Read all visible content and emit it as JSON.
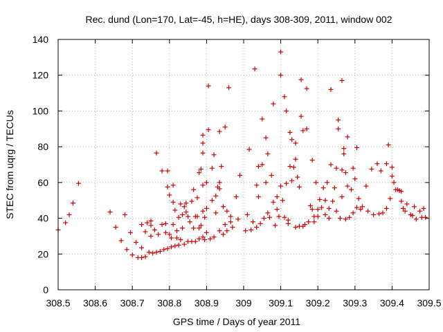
{
  "chart_data": {
    "type": "scatter",
    "title": "Rec. dund (Lon=170, Lat=-45, h=HE), days 308-309, 2011, window 002",
    "xlabel": "GPS time / Days of year 2011",
    "ylabel": "STEC from uqrg / TECUs",
    "xlim": [
      308.5,
      309.5
    ],
    "ylim": [
      0,
      140
    ],
    "xticks": [
      "308.5",
      "308.6",
      "308.7",
      "308.8",
      "308.9",
      "309",
      "309.1",
      "309.2",
      "309.3",
      "309.4",
      "309.5"
    ],
    "yticks": [
      "0",
      "20",
      "40",
      "60",
      "80",
      "100",
      "120",
      "140"
    ],
    "grid": true,
    "marker": "plus",
    "color": "#cc0000",
    "points": [
      [
        308.5,
        33.5
      ],
      [
        308.52,
        37.5
      ],
      [
        308.53,
        42
      ],
      [
        308.54,
        48.5
      ],
      [
        308.555,
        59.5
      ],
      [
        308.64,
        43.5
      ],
      [
        308.655,
        35
      ],
      [
        308.67,
        27.5
      ],
      [
        308.68,
        42
      ],
      [
        308.685,
        22.5
      ],
      [
        308.695,
        32
      ],
      [
        308.7,
        19.5
      ],
      [
        308.71,
        26.5
      ],
      [
        308.715,
        18
      ],
      [
        308.725,
        18
      ],
      [
        308.725,
        23.5
      ],
      [
        308.725,
        36.5
      ],
      [
        308.735,
        18.5
      ],
      [
        308.735,
        32.5
      ],
      [
        308.74,
        37.5
      ],
      [
        308.745,
        21
      ],
      [
        308.75,
        30
      ],
      [
        308.75,
        36
      ],
      [
        308.75,
        38.5
      ],
      [
        308.755,
        20.5
      ],
      [
        308.76,
        33.5
      ],
      [
        308.765,
        21
      ],
      [
        308.765,
        76.5
      ],
      [
        308.77,
        31
      ],
      [
        308.775,
        21.5
      ],
      [
        308.78,
        36.5
      ],
      [
        308.78,
        66.5
      ],
      [
        308.785,
        22.5
      ],
      [
        308.79,
        32
      ],
      [
        308.79,
        37
      ],
      [
        308.795,
        23
      ],
      [
        308.795,
        57.5
      ],
      [
        308.795,
        66.5
      ],
      [
        308.8,
        31
      ],
      [
        308.8,
        53
      ],
      [
        308.805,
        24
      ],
      [
        308.805,
        29
      ],
      [
        308.81,
        36.5
      ],
      [
        308.81,
        49
      ],
      [
        308.81,
        58.5
      ],
      [
        308.815,
        24.5
      ],
      [
        308.815,
        44.5
      ],
      [
        308.82,
        29
      ],
      [
        308.82,
        33
      ],
      [
        308.825,
        25
      ],
      [
        308.825,
        40.5
      ],
      [
        308.83,
        48
      ],
      [
        308.83,
        28
      ],
      [
        308.835,
        42
      ],
      [
        308.835,
        34.5
      ],
      [
        308.84,
        25.5
      ],
      [
        308.84,
        46.5
      ],
      [
        308.845,
        43.5
      ],
      [
        308.845,
        48.5
      ],
      [
        308.85,
        27
      ],
      [
        308.85,
        41
      ],
      [
        308.855,
        38
      ],
      [
        308.86,
        27
      ],
      [
        308.86,
        49.5
      ],
      [
        308.865,
        56
      ],
      [
        308.865,
        34.5
      ],
      [
        308.87,
        27
      ],
      [
        308.87,
        41
      ],
      [
        308.875,
        51.5
      ],
      [
        308.875,
        41
      ],
      [
        308.88,
        28.5
      ],
      [
        308.88,
        34.5
      ],
      [
        308.88,
        65.5
      ],
      [
        308.885,
        36
      ],
      [
        308.885,
        67.5
      ],
      [
        308.89,
        29.5
      ],
      [
        308.89,
        44
      ],
      [
        308.89,
        58.5
      ],
      [
        308.89,
        76.5
      ],
      [
        308.89,
        82
      ],
      [
        308.89,
        86.5
      ],
      [
        308.895,
        40.5
      ],
      [
        308.895,
        28
      ],
      [
        308.9,
        32
      ],
      [
        308.9,
        45.5
      ],
      [
        308.9,
        60
      ],
      [
        308.905,
        89.5
      ],
      [
        308.905,
        114
      ],
      [
        308.91,
        28.5
      ],
      [
        308.915,
        50
      ],
      [
        308.915,
        68
      ],
      [
        308.92,
        29.5
      ],
      [
        308.92,
        75.5
      ],
      [
        308.925,
        43
      ],
      [
        308.925,
        52.5
      ],
      [
        308.93,
        57.5
      ],
      [
        308.935,
        33
      ],
      [
        308.935,
        56.5
      ],
      [
        308.935,
        60
      ],
      [
        308.935,
        88.5
      ],
      [
        308.94,
        69
      ],
      [
        308.945,
        31
      ],
      [
        308.945,
        46.5
      ],
      [
        308.95,
        36.5
      ],
      [
        308.95,
        91
      ],
      [
        308.955,
        33
      ],
      [
        308.955,
        44
      ],
      [
        308.96,
        113
      ],
      [
        308.965,
        38
      ],
      [
        308.965,
        41
      ],
      [
        308.97,
        35
      ],
      [
        308.98,
        52
      ],
      [
        308.985,
        39.5
      ],
      [
        308.99,
        64
      ],
      [
        309.005,
        33
      ],
      [
        309.01,
        42
      ],
      [
        309.015,
        78.5
      ],
      [
        309.02,
        33.5
      ],
      [
        309.025,
        38
      ],
      [
        309.03,
        123.5
      ],
      [
        309.035,
        35
      ],
      [
        309.035,
        58.5
      ],
      [
        309.04,
        52
      ],
      [
        309.04,
        69
      ],
      [
        309.045,
        37
      ],
      [
        309.05,
        70
      ],
      [
        309.05,
        95.5
      ],
      [
        309.055,
        40
      ],
      [
        309.06,
        60
      ],
      [
        309.06,
        85
      ],
      [
        309.065,
        43
      ],
      [
        309.065,
        76
      ],
      [
        309.07,
        40.5
      ],
      [
        309.075,
        64
      ],
      [
        309.08,
        104
      ],
      [
        309.08,
        49
      ],
      [
        309.085,
        36
      ],
      [
        309.09,
        45
      ],
      [
        309.09,
        52
      ],
      [
        309.095,
        41
      ],
      [
        309.1,
        58
      ],
      [
        309.1,
        120
      ],
      [
        309.1,
        133
      ],
      [
        309.105,
        50
      ],
      [
        309.11,
        40.5
      ],
      [
        309.11,
        108
      ],
      [
        309.115,
        100
      ],
      [
        309.115,
        59.5
      ],
      [
        309.12,
        39
      ],
      [
        309.12,
        37
      ],
      [
        309.125,
        69
      ],
      [
        309.125,
        88
      ],
      [
        309.13,
        61
      ],
      [
        309.13,
        84
      ],
      [
        309.135,
        68.5
      ],
      [
        309.14,
        82
      ],
      [
        309.14,
        73
      ],
      [
        309.14,
        35
      ],
      [
        309.145,
        63
      ],
      [
        309.15,
        35.5
      ],
      [
        309.15,
        57.5
      ],
      [
        309.155,
        97
      ],
      [
        309.155,
        117.5
      ],
      [
        309.16,
        89
      ],
      [
        309.16,
        35.5
      ],
      [
        309.165,
        36.5
      ],
      [
        309.17,
        90
      ],
      [
        309.17,
        112.5
      ],
      [
        309.175,
        38
      ],
      [
        309.18,
        47
      ],
      [
        309.185,
        72.5
      ],
      [
        309.185,
        45
      ],
      [
        309.19,
        41
      ],
      [
        309.19,
        38
      ],
      [
        309.195,
        60
      ],
      [
        309.2,
        45
      ],
      [
        309.2,
        41
      ],
      [
        309.205,
        50.5
      ],
      [
        309.21,
        46
      ],
      [
        309.215,
        57
      ],
      [
        309.22,
        42
      ],
      [
        309.22,
        50
      ],
      [
        309.225,
        60
      ],
      [
        309.23,
        40
      ],
      [
        309.23,
        45.5
      ],
      [
        309.235,
        112
      ],
      [
        309.235,
        70
      ],
      [
        309.24,
        49.5
      ],
      [
        309.245,
        57
      ],
      [
        309.25,
        44
      ],
      [
        309.25,
        68
      ],
      [
        309.255,
        95
      ],
      [
        309.255,
        90
      ],
      [
        309.26,
        40
      ],
      [
        309.265,
        52
      ],
      [
        309.265,
        67
      ],
      [
        309.265,
        117
      ],
      [
        309.27,
        79
      ],
      [
        309.27,
        76
      ],
      [
        309.275,
        39.5
      ],
      [
        309.275,
        65.5
      ],
      [
        309.28,
        85.5
      ],
      [
        309.28,
        58
      ],
      [
        309.285,
        40.5
      ],
      [
        309.29,
        56
      ],
      [
        309.295,
        43
      ],
      [
        309.295,
        68
      ],
      [
        309.3,
        62
      ],
      [
        309.305,
        79.5
      ],
      [
        309.305,
        46
      ],
      [
        309.31,
        51
      ],
      [
        309.315,
        45
      ],
      [
        309.32,
        46.5
      ],
      [
        309.33,
        58
      ],
      [
        309.335,
        44
      ],
      [
        309.345,
        67.5
      ],
      [
        309.35,
        42
      ],
      [
        309.36,
        70.5
      ],
      [
        309.365,
        42.5
      ],
      [
        309.37,
        66.5
      ],
      [
        309.375,
        43
      ],
      [
        309.385,
        70.5
      ],
      [
        309.385,
        45.5
      ],
      [
        309.39,
        81
      ],
      [
        309.395,
        51
      ],
      [
        309.4,
        68.5
      ],
      [
        309.4,
        63.5
      ],
      [
        309.405,
        60
      ],
      [
        309.41,
        56
      ],
      [
        309.415,
        56
      ],
      [
        309.42,
        55.5
      ],
      [
        309.425,
        49.5
      ],
      [
        309.425,
        55
      ],
      [
        309.43,
        45.5
      ],
      [
        309.435,
        44
      ],
      [
        309.44,
        48
      ],
      [
        309.45,
        42
      ],
      [
        309.455,
        41.5
      ],
      [
        309.46,
        46.5
      ],
      [
        309.465,
        39.5
      ],
      [
        309.475,
        44
      ],
      [
        309.48,
        40.5
      ],
      [
        309.485,
        45.5
      ],
      [
        309.49,
        40.5
      ]
    ]
  }
}
